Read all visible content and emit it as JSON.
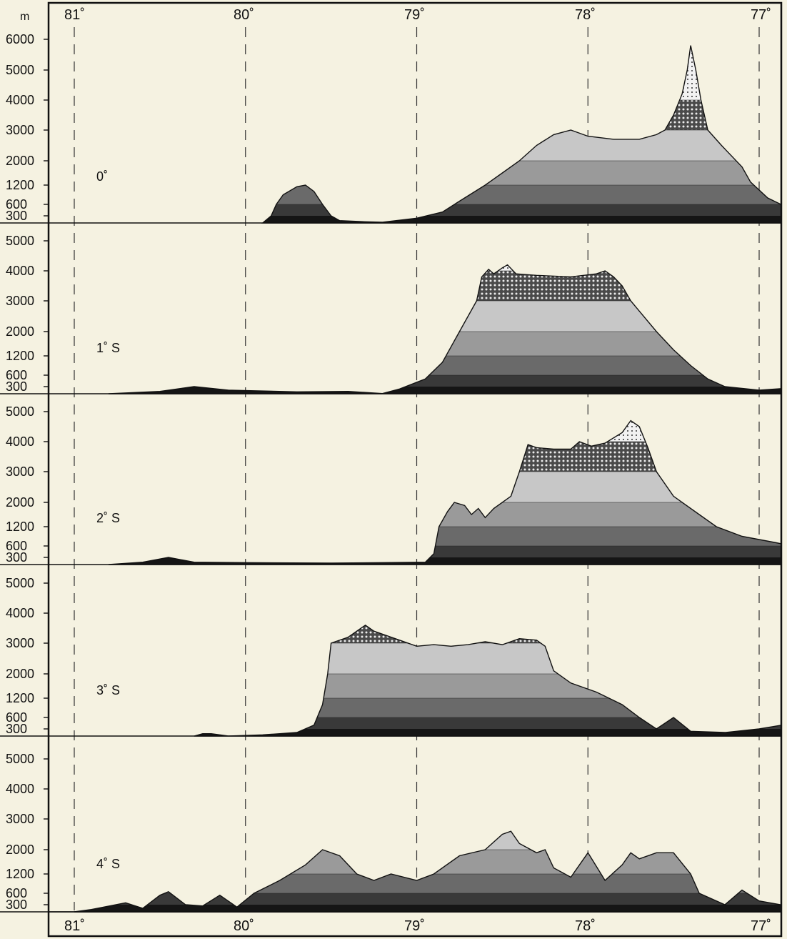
{
  "chart_data": {
    "type": "area",
    "description_type": "topographic cross-section profiles",
    "y_unit": "m",
    "x_ticks": [
      "81˚",
      "80˚",
      "79˚",
      "78˚",
      "77˚"
    ],
    "x_tick_values": [
      81,
      80,
      79,
      78,
      77
    ],
    "elevation_bands": [
      0,
      300,
      600,
      1200,
      2000,
      3000,
      4000,
      5000
    ],
    "band_colors": [
      "#181818",
      "#3c3c3c",
      "#6b6b6b",
      "#9b9b9b",
      "#c9c9c9",
      "#dcdcdc",
      "#dcdcdc"
    ],
    "panels": [
      {
        "label": "0˚",
        "y_ticks": [
          "6000",
          "5000",
          "4000",
          "3000",
          "2000",
          "1200",
          "600",
          "300"
        ],
        "y_tick_values": [
          6000,
          5000,
          4000,
          3000,
          2000,
          1200,
          600,
          300
        ],
        "profile": [
          [
            79.9,
            0
          ],
          [
            79.85,
            300
          ],
          [
            79.82,
            600
          ],
          [
            79.78,
            900
          ],
          [
            79.7,
            1150
          ],
          [
            79.65,
            1200
          ],
          [
            79.6,
            1000
          ],
          [
            79.55,
            600
          ],
          [
            79.5,
            300
          ],
          [
            79.45,
            100
          ],
          [
            79.3,
            50
          ],
          [
            79.2,
            30
          ],
          [
            79.0,
            200
          ],
          [
            78.85,
            400
          ],
          [
            78.75,
            700
          ],
          [
            78.6,
            1200
          ],
          [
            78.5,
            1600
          ],
          [
            78.4,
            2000
          ],
          [
            78.3,
            2500
          ],
          [
            78.2,
            2850
          ],
          [
            78.1,
            3000
          ],
          [
            78.0,
            2800
          ],
          [
            77.85,
            2700
          ],
          [
            77.7,
            2700
          ],
          [
            77.6,
            2850
          ],
          [
            77.55,
            3000
          ],
          [
            77.5,
            3500
          ],
          [
            77.45,
            4200
          ],
          [
            77.42,
            5000
          ],
          [
            77.4,
            5800
          ],
          [
            77.37,
            5000
          ],
          [
            77.34,
            4000
          ],
          [
            77.3,
            3000
          ],
          [
            77.22,
            2500
          ],
          [
            77.1,
            1800
          ],
          [
            77.05,
            1300
          ],
          [
            76.95,
            800
          ],
          [
            76.85,
            550
          ],
          [
            76.7,
            500
          ],
          [
            76.5,
            400
          ],
          [
            76.35,
            300
          ],
          [
            76.2,
            150
          ],
          [
            76.1,
            120
          ]
        ]
      },
      {
        "label": "1˚ S",
        "y_ticks": [
          "5000",
          "4000",
          "3000",
          "2000",
          "1200",
          "600",
          "300"
        ],
        "y_tick_values": [
          5000,
          4000,
          3000,
          2000,
          1200,
          600,
          300
        ],
        "profile": [
          [
            80.8,
            0
          ],
          [
            80.5,
            100
          ],
          [
            80.3,
            300
          ],
          [
            80.1,
            150
          ],
          [
            79.7,
            80
          ],
          [
            79.4,
            100
          ],
          [
            79.2,
            10
          ],
          [
            79.1,
            200
          ],
          [
            78.95,
            500
          ],
          [
            78.85,
            1000
          ],
          [
            78.75,
            2000
          ],
          [
            78.65,
            3000
          ],
          [
            78.62,
            3800
          ],
          [
            78.58,
            4050
          ],
          [
            78.55,
            3900
          ],
          [
            78.5,
            4100
          ],
          [
            78.47,
            4200
          ],
          [
            78.42,
            3900
          ],
          [
            78.3,
            3850
          ],
          [
            78.1,
            3800
          ],
          [
            77.95,
            3900
          ],
          [
            77.9,
            4000
          ],
          [
            77.85,
            3800
          ],
          [
            77.8,
            3500
          ],
          [
            77.75,
            3000
          ],
          [
            77.6,
            2000
          ],
          [
            77.5,
            1400
          ],
          [
            77.4,
            900
          ],
          [
            77.3,
            500
          ],
          [
            77.2,
            300
          ],
          [
            77.0,
            150
          ],
          [
            76.8,
            250
          ],
          [
            76.6,
            150
          ],
          [
            76.4,
            150
          ],
          [
            76.1,
            120
          ]
        ]
      },
      {
        "label": "2˚ S",
        "y_ticks": [
          "5000",
          "4000",
          "3000",
          "2000",
          "1200",
          "600",
          "300"
        ],
        "y_tick_values": [
          5000,
          4000,
          3000,
          2000,
          1200,
          600,
          300
        ],
        "profile": [
          [
            80.8,
            0
          ],
          [
            80.6,
            100
          ],
          [
            80.45,
            300
          ],
          [
            80.3,
            100
          ],
          [
            80.0,
            80
          ],
          [
            79.5,
            60
          ],
          [
            79.2,
            80
          ],
          [
            78.95,
            100
          ],
          [
            78.9,
            400
          ],
          [
            78.87,
            1200
          ],
          [
            78.82,
            1700
          ],
          [
            78.78,
            2000
          ],
          [
            78.72,
            1900
          ],
          [
            78.68,
            1600
          ],
          [
            78.64,
            1800
          ],
          [
            78.6,
            1500
          ],
          [
            78.55,
            1800
          ],
          [
            78.45,
            2200
          ],
          [
            78.4,
            3000
          ],
          [
            78.35,
            3900
          ],
          [
            78.3,
            3800
          ],
          [
            78.2,
            3750
          ],
          [
            78.1,
            3750
          ],
          [
            78.05,
            4000
          ],
          [
            77.98,
            3850
          ],
          [
            77.9,
            3950
          ],
          [
            77.8,
            4300
          ],
          [
            77.75,
            4700
          ],
          [
            77.7,
            4500
          ],
          [
            77.65,
            3800
          ],
          [
            77.6,
            3000
          ],
          [
            77.5,
            2200
          ],
          [
            77.35,
            1600
          ],
          [
            77.25,
            1200
          ],
          [
            77.1,
            900
          ],
          [
            76.9,
            700
          ],
          [
            76.7,
            500
          ],
          [
            76.5,
            300
          ],
          [
            76.3,
            150
          ],
          [
            76.2,
            300
          ],
          [
            76.1,
            200
          ]
        ]
      },
      {
        "label": "3˚ S",
        "y_ticks": [
          "5000",
          "4000",
          "3000",
          "2000",
          "1200",
          "600",
          "300"
        ],
        "y_tick_values": [
          5000,
          4000,
          3000,
          2000,
          1200,
          600,
          300
        ],
        "profile": [
          [
            80.3,
            0
          ],
          [
            80.25,
            100
          ],
          [
            80.2,
            100
          ],
          [
            80.1,
            0
          ],
          [
            79.9,
            50
          ],
          [
            79.8,
            100
          ],
          [
            79.7,
            150
          ],
          [
            79.6,
            400
          ],
          [
            79.55,
            1000
          ],
          [
            79.52,
            2000
          ],
          [
            79.5,
            3000
          ],
          [
            79.4,
            3200
          ],
          [
            79.3,
            3600
          ],
          [
            79.25,
            3400
          ],
          [
            79.1,
            3100
          ],
          [
            79.0,
            2900
          ],
          [
            78.9,
            2950
          ],
          [
            78.8,
            2900
          ],
          [
            78.7,
            2950
          ],
          [
            78.6,
            3050
          ],
          [
            78.5,
            2950
          ],
          [
            78.4,
            3150
          ],
          [
            78.3,
            3100
          ],
          [
            78.25,
            2900
          ],
          [
            78.2,
            2100
          ],
          [
            78.1,
            1700
          ],
          [
            77.95,
            1400
          ],
          [
            77.8,
            1000
          ],
          [
            77.7,
            600
          ],
          [
            77.6,
            300
          ],
          [
            77.5,
            600
          ],
          [
            77.4,
            200
          ],
          [
            77.2,
            150
          ],
          [
            77.0,
            300
          ],
          [
            76.8,
            450
          ],
          [
            76.6,
            400
          ],
          [
            76.4,
            200
          ],
          [
            76.1,
            150
          ]
        ]
      },
      {
        "label": "4˚ S",
        "y_ticks": [
          "5000",
          "4000",
          "3000",
          "2000",
          "1200",
          "600",
          "300"
        ],
        "y_tick_values": [
          5000,
          4000,
          3000,
          2000,
          1200,
          600,
          300
        ],
        "profile": [
          [
            81.0,
            0
          ],
          [
            80.9,
            100
          ],
          [
            80.7,
            350
          ],
          [
            80.6,
            150
          ],
          [
            80.5,
            550
          ],
          [
            80.45,
            650
          ],
          [
            80.35,
            300
          ],
          [
            80.25,
            250
          ],
          [
            80.15,
            550
          ],
          [
            80.05,
            200
          ],
          [
            79.95,
            600
          ],
          [
            79.8,
            1000
          ],
          [
            79.65,
            1500
          ],
          [
            79.55,
            2000
          ],
          [
            79.45,
            1800
          ],
          [
            79.35,
            1200
          ],
          [
            79.25,
            1000
          ],
          [
            79.15,
            1200
          ],
          [
            79.0,
            1000
          ],
          [
            78.9,
            1200
          ],
          [
            78.75,
            1800
          ],
          [
            78.6,
            2000
          ],
          [
            78.5,
            2500
          ],
          [
            78.45,
            2600
          ],
          [
            78.4,
            2200
          ],
          [
            78.3,
            1900
          ],
          [
            78.25,
            2000
          ],
          [
            78.2,
            1400
          ],
          [
            78.1,
            1100
          ],
          [
            78.0,
            1900
          ],
          [
            77.9,
            1000
          ],
          [
            77.8,
            1500
          ],
          [
            77.75,
            1900
          ],
          [
            77.7,
            1700
          ],
          [
            77.6,
            1900
          ],
          [
            77.5,
            1900
          ],
          [
            77.4,
            1200
          ],
          [
            77.35,
            600
          ],
          [
            77.2,
            300
          ],
          [
            77.1,
            700
          ],
          [
            77.0,
            400
          ],
          [
            76.8,
            200
          ],
          [
            76.6,
            100
          ],
          [
            76.1,
            100
          ]
        ]
      }
    ]
  }
}
